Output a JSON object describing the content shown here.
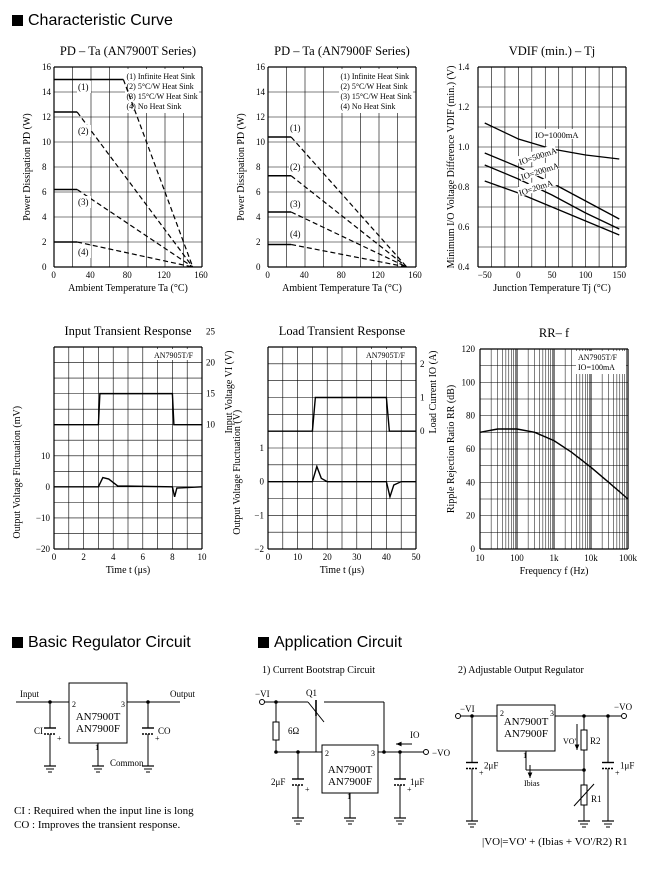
{
  "sections": {
    "characteristic": "Characteristic Curve",
    "basic": "Basic Regulator Circuit",
    "application": "Application Circuit"
  },
  "chart_data": [
    {
      "type": "line",
      "title": "PD – Ta (AN7900T Series)",
      "xlabel": "Ambient Temperature  Ta (°C)",
      "ylabel": "Power Dissipation  PD (W)",
      "xlim": [
        0,
        160
      ],
      "ylim": [
        0,
        16
      ],
      "xticks": [
        "0",
        "40",
        "80",
        "120",
        "160"
      ],
      "yticks": [
        "0",
        "2",
        "4",
        "6",
        "8",
        "10",
        "12",
        "14",
        "16"
      ],
      "legend": [
        "(1) Infinite Heat Sink",
        "(2) 5°C/W Heat Sink",
        "(3) 15°C/W Heat Sink",
        "(4) No Heat Sink"
      ],
      "series": [
        {
          "name": "(1)",
          "x": [
            0,
            75,
            150
          ],
          "y": [
            15,
            15,
            0
          ]
        },
        {
          "name": "(2)",
          "x": [
            0,
            25,
            150
          ],
          "y": [
            12.4,
            12.4,
            0
          ]
        },
        {
          "name": "(3)",
          "x": [
            0,
            25,
            150
          ],
          "y": [
            6.2,
            6.2,
            0
          ]
        },
        {
          "name": "(4)",
          "x": [
            0,
            25,
            150
          ],
          "y": [
            2,
            2,
            0
          ]
        }
      ]
    },
    {
      "type": "line",
      "title": "PD – Ta (AN7900F Series)",
      "xlabel": "Ambient Temperature  Ta (°C)",
      "ylabel": "Power Dissipation  PD (W)",
      "xlim": [
        0,
        160
      ],
      "ylim": [
        0,
        16
      ],
      "xticks": [
        "0",
        "40",
        "80",
        "120",
        "160"
      ],
      "yticks": [
        "0",
        "2",
        "4",
        "6",
        "8",
        "10",
        "12",
        "14",
        "16"
      ],
      "legend": [
        "(1) Infinite Heat Sink",
        "(2) 5°C/W Heat Sink",
        "(3) 15°C/W Heat Sink",
        "(4) No Heat Sink"
      ],
      "series": [
        {
          "name": "(1)",
          "x": [
            0,
            25,
            150
          ],
          "y": [
            10.4,
            10.4,
            0
          ]
        },
        {
          "name": "(2)",
          "x": [
            0,
            25,
            150
          ],
          "y": [
            7.3,
            7.3,
            0
          ]
        },
        {
          "name": "(3)",
          "x": [
            0,
            25,
            150
          ],
          "y": [
            4.4,
            4.4,
            0
          ]
        },
        {
          "name": "(4)",
          "x": [
            0,
            25,
            150
          ],
          "y": [
            1.8,
            1.8,
            0
          ]
        }
      ]
    },
    {
      "type": "line",
      "title": "VDIF (min.) – Tj",
      "xlabel": "Junction Temperature  Tj (°C)",
      "ylabel": "Minimum I/O Voltage Difference  VDIF (min.) (V)",
      "xlim": [
        -60,
        160
      ],
      "ylim": [
        0.4,
        1.4
      ],
      "xticks": [
        "−50",
        "0",
        "50",
        "100",
        "150"
      ],
      "yticks": [
        "0.4",
        "0.6",
        "0.8",
        "1.0",
        "1.2",
        "1.4"
      ],
      "series": [
        {
          "name": "IO=1000mA",
          "x": [
            -50,
            0,
            50,
            100,
            150
          ],
          "y": [
            1.12,
            1.04,
            0.99,
            0.96,
            0.94
          ]
        },
        {
          "name": "IO=500mA",
          "x": [
            -50,
            0,
            50,
            100,
            150
          ],
          "y": [
            0.97,
            0.9,
            0.82,
            0.73,
            0.64
          ]
        },
        {
          "name": "IO=200mA",
          "x": [
            -50,
            0,
            50,
            100,
            150
          ],
          "y": [
            0.91,
            0.84,
            0.76,
            0.67,
            0.59
          ]
        },
        {
          "name": "IO=20mA",
          "x": [
            -50,
            0,
            50,
            100,
            150
          ],
          "y": [
            0.83,
            0.77,
            0.7,
            0.63,
            0.56
          ]
        }
      ],
      "labels": [
        "IO=1000mA",
        "IO=500mA",
        "IO=200mA",
        "IO=20mA"
      ]
    },
    {
      "type": "line",
      "title": "Input Transient Response",
      "annotation": "AN7905T/F",
      "xlabel": "Time  t (μs)",
      "ylabel": "Output Voltage Fluctuation (mV)",
      "ylabel2": "Input Voltage  VI (V)",
      "xlim": [
        0,
        10
      ],
      "xticks": [
        "0",
        "2",
        "4",
        "6",
        "8",
        "10"
      ],
      "yticks": [
        "−20",
        "−10",
        "0",
        "10"
      ],
      "yticks2": [
        "10",
        "15",
        "20",
        "25"
      ],
      "series": [
        {
          "name": "Input Voltage",
          "t": [
            0,
            3,
            3.1,
            8,
            8.1,
            10
          ],
          "v": [
            10,
            10,
            15,
            15,
            10,
            10
          ]
        },
        {
          "name": "Output Fluctuation",
          "t": [
            0,
            3,
            3.3,
            3.7,
            4.3,
            8,
            8.15,
            8.3,
            10
          ],
          "mv": [
            0,
            0,
            3,
            2.5,
            0.3,
            0,
            -3.2,
            -0.4,
            0
          ]
        }
      ]
    },
    {
      "type": "line",
      "title": "Load Transient Response",
      "annotation": "AN7905T/F",
      "xlabel": "Time  t (μs)",
      "ylabel": "Output Voltage Fluctuation (V)",
      "ylabel2": "Load Current  IO (A)",
      "xlim": [
        0,
        50
      ],
      "xticks": [
        "0",
        "10",
        "20",
        "30",
        "40",
        "50"
      ],
      "yticks": [
        "−2",
        "−1",
        "0",
        "1"
      ],
      "yticks2": [
        "0",
        "1",
        "2"
      ],
      "series": [
        {
          "name": "Load Current",
          "t": [
            0,
            15,
            16,
            40,
            41,
            50
          ],
          "a": [
            0,
            0,
            1,
            1,
            0,
            0
          ]
        },
        {
          "name": "Output Fluctuation",
          "t": [
            0,
            15,
            16.5,
            18,
            20,
            40,
            41.2,
            42.5,
            45,
            50
          ],
          "v": [
            0,
            0,
            0.45,
            0.1,
            0,
            0,
            -0.45,
            -0.1,
            0,
            0
          ]
        }
      ]
    },
    {
      "type": "line",
      "title": "RR– f",
      "annotation": "AN7905T/F",
      "annotation2": "IO=100mA",
      "xlabel": "Frequency  f (Hz)",
      "ylabel": "Ripple Rejection Ratio  RR (dB)",
      "xscale": "log",
      "xlim": [
        10,
        100000
      ],
      "ylim": [
        0,
        120
      ],
      "xticks": [
        "10",
        "100",
        "1k",
        "10k",
        "100k"
      ],
      "yticks": [
        "0",
        "20",
        "40",
        "60",
        "80",
        "100",
        "120"
      ],
      "series": [
        {
          "name": "RR",
          "f": [
            10,
            30,
            100,
            300,
            1000,
            3000,
            10000,
            30000,
            100000
          ],
          "rr": [
            70,
            72,
            72,
            70,
            65,
            58,
            49,
            40,
            30
          ]
        }
      ]
    }
  ],
  "basic_circuit": {
    "input": "Input",
    "output": "Output",
    "ic_line1": "AN7900T",
    "ic_line2": "AN7900F",
    "pin2": "2",
    "pin3": "3",
    "pin1": "1",
    "ci": "CI",
    "co": "CO",
    "common": "Common",
    "note_ci_key": "CI",
    "note_ci": ": Required when the input line is long",
    "note_co_key": "CO",
    "note_co": ": Improves the transient response."
  },
  "app1": {
    "title": "1) Current Bootstrap Circuit",
    "vi": "−VI",
    "q1": "Q1",
    "r": "6Ω",
    "io": "IO",
    "vo": "−VO",
    "c1": "2μF",
    "c2": "1μF",
    "ic_line1": "AN7900T",
    "ic_line2": "AN7900F",
    "pin2": "2",
    "pin3": "3",
    "pin1": "1"
  },
  "app2": {
    "title": "2) Adjustable Output Regulator",
    "vi": "−VI",
    "vo": "−VO",
    "c1": "2μF",
    "c2": "1μF",
    "vo_prime": "VO'",
    "r1": "R1",
    "r2": "R2",
    "ibias": "Ibias",
    "ic_line1": "AN7900T",
    "ic_line2": "AN7900F",
    "pin2": "2",
    "pin3": "3",
    "pin1": "1",
    "formula": "|VO|=VO' + (Ibias + VO'/R2) R1"
  }
}
